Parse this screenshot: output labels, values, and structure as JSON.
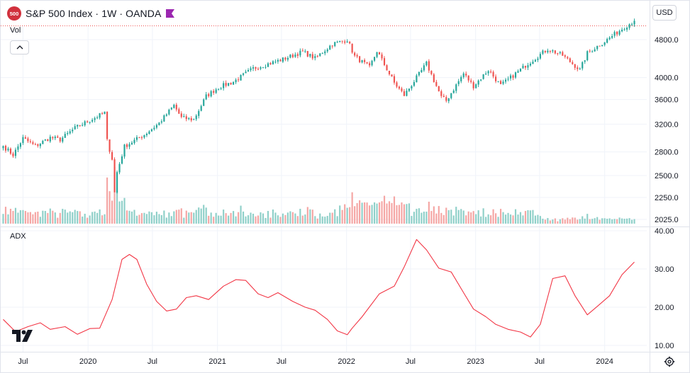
{
  "header": {
    "symbol_badge": "500",
    "title": "S&P 500 Index · 1W · OANDA",
    "currency": "USD",
    "flag_color": "#9c27b0"
  },
  "icons": [
    "flag-icon",
    "chevron-up-icon",
    "tradingview-logo-icon",
    "gear-icon"
  ],
  "colors": {
    "up": "#26a69a",
    "down": "#ef5350",
    "up_vol": "#8fd0c9",
    "down_vol": "#f5a6a4",
    "adx": "#f23645"
  },
  "chart_data": [
    {
      "type": "candlestick",
      "pane": "price",
      "volume_label": "Vol",
      "y_scale": "log",
      "y_ticks": [
        4800,
        4000,
        3600,
        3200,
        2800,
        2500,
        2250,
        2025
      ],
      "y_tick_labels": [
        "4800.0",
        "4000.0",
        "3600.0",
        "3200.0",
        "2800.0",
        "2500.0",
        "2250.0",
        "2025.0"
      ],
      "x_ticks": [
        "2019-07-01",
        "2020-01-01",
        "2020-07-01",
        "2021-01-01",
        "2021-07-01",
        "2022-01-01",
        "2022-07-01",
        "2023-01-01",
        "2023-07-01",
        "2024-01-01"
      ],
      "x_tick_labels": [
        "Jul",
        "2020",
        "Jul",
        "2021",
        "Jul",
        "2022",
        "Jul",
        "2023",
        "Jul",
        "2024"
      ],
      "x_range": [
        "2019-04-29",
        "2024-04-29"
      ],
      "close_path": [
        [
          "2019-05-06",
          2880
        ],
        [
          "2019-06-03",
          2760
        ],
        [
          "2019-07-01",
          2990
        ],
        [
          "2019-08-05",
          2880
        ],
        [
          "2019-09-16",
          3000
        ],
        [
          "2019-10-14",
          2970
        ],
        [
          "2019-11-25",
          3140
        ],
        [
          "2020-01-06",
          3260
        ],
        [
          "2020-02-17",
          3380
        ],
        [
          "2020-02-24",
          2954
        ],
        [
          "2020-03-09",
          2711
        ],
        [
          "2020-03-16",
          2304
        ],
        [
          "2020-03-23",
          2541
        ],
        [
          "2020-04-13",
          2875
        ],
        [
          "2020-06-08",
          3041
        ],
        [
          "2020-07-20",
          3215
        ],
        [
          "2020-08-31",
          3500
        ],
        [
          "2020-09-21",
          3298
        ],
        [
          "2020-10-26",
          3270
        ],
        [
          "2020-11-30",
          3660
        ],
        [
          "2021-01-04",
          3820
        ],
        [
          "2021-02-15",
          3920
        ],
        [
          "2021-04-12",
          4180
        ],
        [
          "2021-06-28",
          4350
        ],
        [
          "2021-08-30",
          4530
        ],
        [
          "2021-10-04",
          4390
        ],
        [
          "2021-11-22",
          4700
        ],
        [
          "2022-01-03",
          4797
        ],
        [
          "2022-01-24",
          4430
        ],
        [
          "2022-03-07",
          4200
        ],
        [
          "2022-03-28",
          4545
        ],
        [
          "2022-05-16",
          3900
        ],
        [
          "2022-06-13",
          3675
        ],
        [
          "2022-08-15",
          4280
        ],
        [
          "2022-09-26",
          3640
        ],
        [
          "2022-10-10",
          3580
        ],
        [
          "2022-11-28",
          4080
        ],
        [
          "2022-12-26",
          3840
        ],
        [
          "2023-02-06",
          4150
        ],
        [
          "2023-03-13",
          3850
        ],
        [
          "2023-05-29",
          4280
        ],
        [
          "2023-07-24",
          4590
        ],
        [
          "2023-09-04",
          4450
        ],
        [
          "2023-10-23",
          4150
        ],
        [
          "2023-11-13",
          4500
        ],
        [
          "2024-01-08",
          4800
        ],
        [
          "2024-02-26",
          5100
        ],
        [
          "2024-03-25",
          5254
        ]
      ]
    },
    {
      "type": "line",
      "pane": "ADX",
      "label": "ADX",
      "y_ticks": [
        40,
        30,
        20,
        10
      ],
      "y_tick_labels": [
        "40.00",
        "30.00",
        "20.00",
        "10.00"
      ],
      "points": [
        [
          "2019-05-06",
          16.8
        ],
        [
          "2019-06-10",
          13.6
        ],
        [
          "2019-07-15",
          14.9
        ],
        [
          "2019-08-19",
          15.9
        ],
        [
          "2019-09-16",
          14.2
        ],
        [
          "2019-10-28",
          14.9
        ],
        [
          "2019-12-02",
          12.9
        ],
        [
          "2020-01-06",
          14.4
        ],
        [
          "2020-02-03",
          14.5
        ],
        [
          "2020-03-09",
          22.0
        ],
        [
          "2020-04-06",
          32.5
        ],
        [
          "2020-04-27",
          33.8
        ],
        [
          "2020-05-18",
          32.5
        ],
        [
          "2020-06-15",
          26.0
        ],
        [
          "2020-07-13",
          21.5
        ],
        [
          "2020-08-10",
          19.0
        ],
        [
          "2020-09-07",
          19.5
        ],
        [
          "2020-10-05",
          22.5
        ],
        [
          "2020-11-02",
          23.0
        ],
        [
          "2020-12-07",
          22.0
        ],
        [
          "2021-01-18",
          25.5
        ],
        [
          "2021-02-22",
          27.2
        ],
        [
          "2021-03-22",
          27.0
        ],
        [
          "2021-04-26",
          23.5
        ],
        [
          "2021-05-24",
          22.5
        ],
        [
          "2021-06-21",
          23.8
        ],
        [
          "2021-08-02",
          21.5
        ],
        [
          "2021-09-06",
          20.0
        ],
        [
          "2021-10-04",
          19.2
        ],
        [
          "2021-11-08",
          16.8
        ],
        [
          "2021-12-06",
          13.8
        ],
        [
          "2022-01-03",
          12.8
        ],
        [
          "2022-01-17",
          14.5
        ],
        [
          "2022-02-14",
          17.5
        ],
        [
          "2022-04-04",
          23.5
        ],
        [
          "2022-05-16",
          25.5
        ],
        [
          "2022-06-13",
          30.5
        ],
        [
          "2022-07-18",
          37.7
        ],
        [
          "2022-08-15",
          35.0
        ],
        [
          "2022-09-19",
          30.2
        ],
        [
          "2022-10-24",
          29.2
        ],
        [
          "2022-11-28",
          23.8
        ],
        [
          "2022-12-26",
          19.5
        ],
        [
          "2023-01-30",
          17.5
        ],
        [
          "2023-02-27",
          15.5
        ],
        [
          "2023-04-03",
          14.2
        ],
        [
          "2023-05-08",
          13.5
        ],
        [
          "2023-06-05",
          12.2
        ],
        [
          "2023-07-03",
          15.5
        ],
        [
          "2023-08-07",
          27.5
        ],
        [
          "2023-09-11",
          28.2
        ],
        [
          "2023-10-09",
          23.0
        ],
        [
          "2023-11-13",
          18.0
        ],
        [
          "2023-12-11",
          20.2
        ],
        [
          "2024-01-15",
          23.0
        ],
        [
          "2024-02-19",
          28.5
        ],
        [
          "2024-03-25",
          31.8
        ]
      ]
    }
  ]
}
